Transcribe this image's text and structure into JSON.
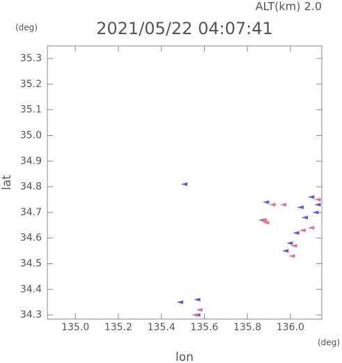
{
  "chart_data": {
    "type": "scatter",
    "title": "2021/05/22 04:07:41",
    "subtitle": "ALT(km) 2.0",
    "y_unit": "(deg)",
    "x_unit": "(deg)",
    "xlabel": "lon",
    "ylabel": "lat",
    "xlim": [
      134.87,
      136.146
    ],
    "ylim": [
      34.284,
      35.349
    ],
    "xticks": [
      {
        "value": 135,
        "label": "135.0"
      },
      135.2,
      135.4,
      135.6,
      135.8,
      {
        "value": 136,
        "label": "136.0"
      }
    ],
    "yticks": [
      34.3,
      34.4,
      34.5,
      34.6,
      34.7,
      34.8,
      34.9,
      {
        "value": 35,
        "label": "35.0"
      },
      35.1,
      35.2,
      35.3
    ],
    "series": [
      {
        "color": "#5a5ae6",
        "x": [
          135.51,
          135.49,
          135.57,
          135.57,
          135.87,
          135.89,
          136.1,
          136.12,
          136.05,
          136.07,
          136.03,
          136.0,
          135.98,
          136.13
        ],
        "y": [
          34.81,
          34.35,
          34.36,
          34.3,
          34.67,
          34.74,
          34.76,
          34.7,
          34.72,
          34.68,
          34.62,
          34.58,
          34.55,
          34.73
        ]
      },
      {
        "color": "#e8708a",
        "x": [
          135.92,
          135.97,
          135.89,
          136.1,
          136.02,
          136.01,
          136.06,
          136.13,
          135.56,
          135.58,
          135.88
        ],
        "y": [
          34.73,
          34.73,
          34.66,
          34.64,
          34.57,
          34.53,
          34.63,
          34.75,
          34.3,
          34.32,
          34.67
        ]
      }
    ]
  }
}
